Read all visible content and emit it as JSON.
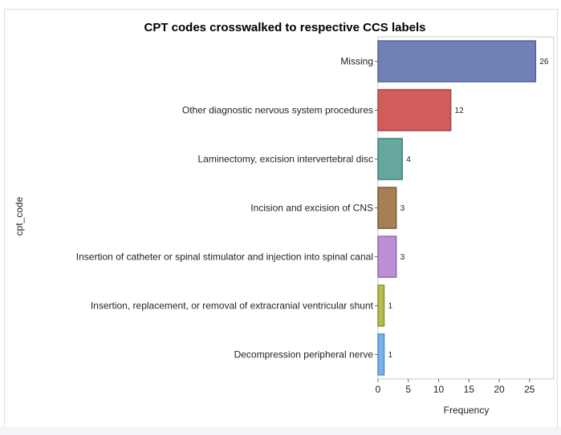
{
  "chart_data": {
    "type": "bar",
    "orientation": "horizontal",
    "title": "CPT codes crosswalked to respective CCS labels",
    "xlabel": "Frequency",
    "ylabel": "cpt_code",
    "xlim": [
      0,
      29
    ],
    "xticks": [
      0,
      5,
      10,
      15,
      20,
      25
    ],
    "grid": false,
    "categories": [
      "Missing",
      "Other diagnostic nervous system procedures",
      "Laminectomy, excision intervertebral disc",
      "Incision and excision of CNS",
      "Insertion of catheter or spinal stimulator and injection into spinal canal",
      "Insertion, replacement, or removal of extracranial ventricular shunt",
      "Decompression peripheral nerve"
    ],
    "values": [
      26,
      12,
      4,
      3,
      3,
      1,
      1
    ],
    "colors": [
      {
        "fill": "#6f81b7",
        "stroke": "#55639a"
      },
      {
        "fill": "#d25b5b",
        "stroke": "#a94444"
      },
      {
        "fill": "#66a89e",
        "stroke": "#3f8276"
      },
      {
        "fill": "#a67f56",
        "stroke": "#7c5a35"
      },
      {
        "fill": "#bc8ed3",
        "stroke": "#9a63b5"
      },
      {
        "fill": "#b6bd4f",
        "stroke": "#8d9330"
      },
      {
        "fill": "#7db2e6",
        "stroke": "#4f8dcc"
      }
    ]
  }
}
